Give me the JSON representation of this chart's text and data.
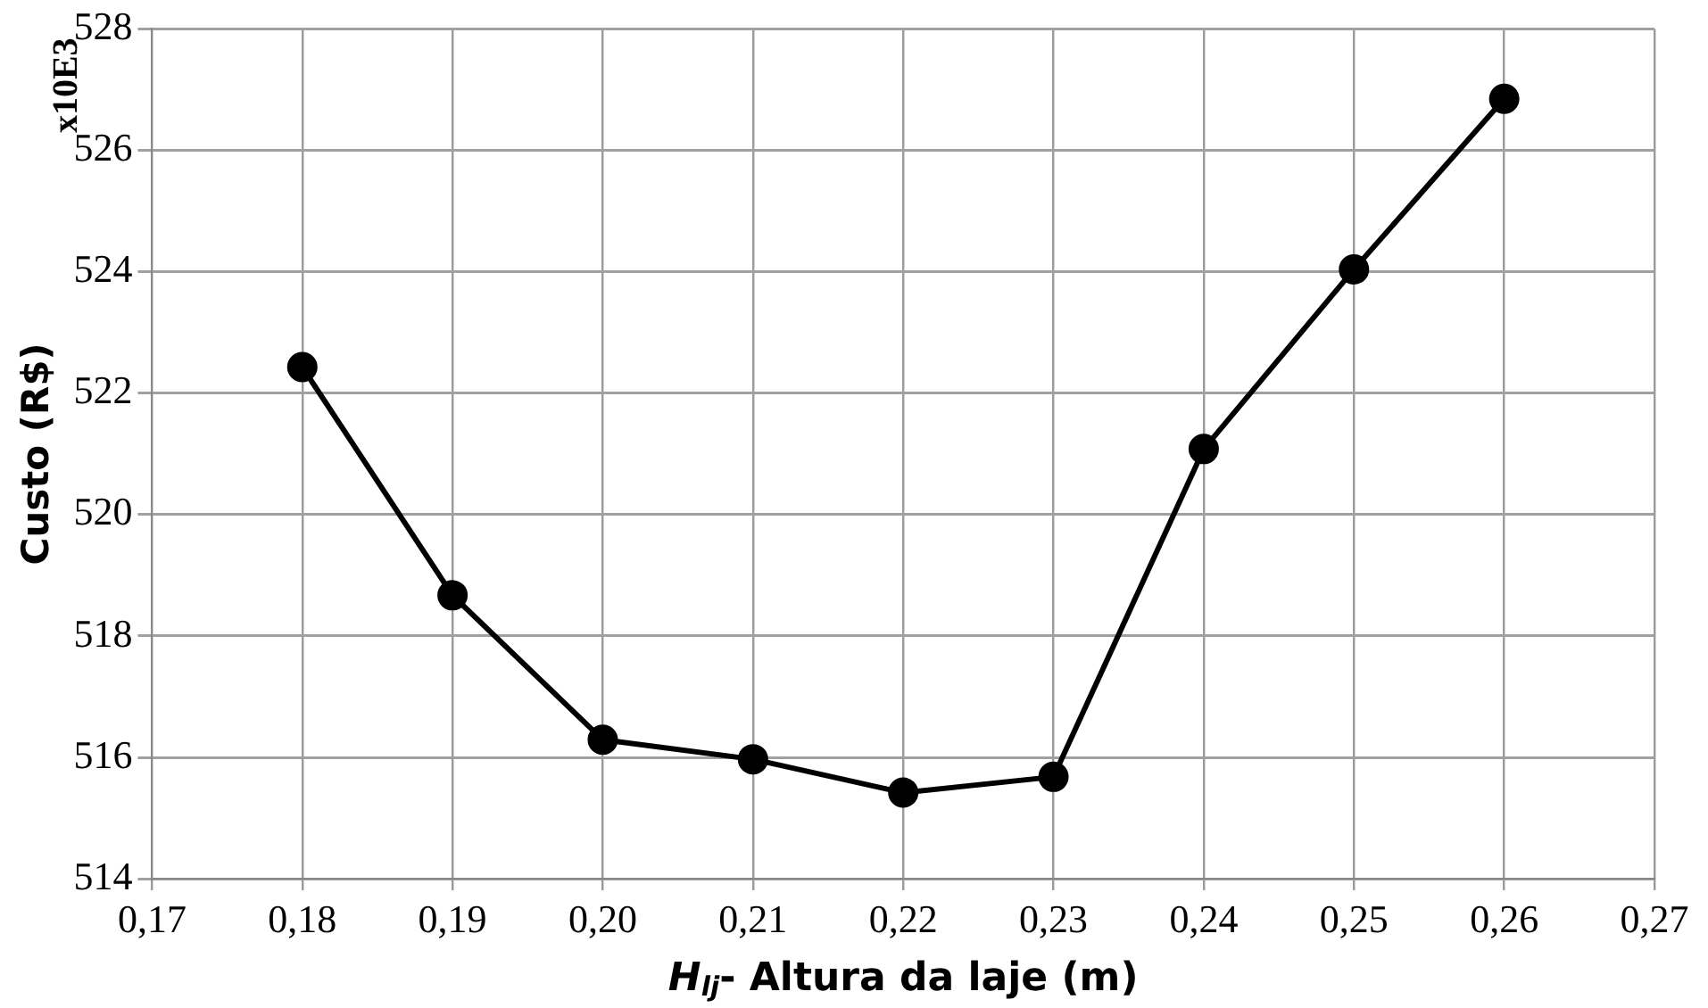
{
  "chart_data": {
    "type": "line",
    "xlabel": "H$_{lj}$- Altura da laje (m)",
    "ylabel": "Custo (R$)",
    "annotations": [
      "x10E3"
    ],
    "x": [
      0.18,
      0.19,
      0.2,
      0.21,
      0.22,
      0.23,
      0.24,
      0.25,
      0.26
    ],
    "series": [
      {
        "color": "#000000",
        "values": [
          522.43,
          518.67,
          516.29,
          515.97,
          515.42,
          515.68,
          521.08,
          524.04,
          526.85
        ]
      }
    ],
    "xlim": [
      0.17,
      0.27
    ],
    "xticks": [
      {
        "value": 0.17,
        "label": "0,17"
      },
      {
        "value": 0.18,
        "label": "0,18"
      },
      {
        "value": 0.19,
        "label": "0,19"
      },
      {
        "value": 0.2,
        "label": "0,20"
      },
      {
        "value": 0.21,
        "label": "0,21"
      },
      {
        "value": 0.22,
        "label": "0,22"
      },
      {
        "value": 0.23,
        "label": "0,23"
      },
      {
        "value": 0.24,
        "label": "0,24"
      },
      {
        "value": 0.25,
        "label": "0,25"
      },
      {
        "value": 0.26,
        "label": "0,26"
      },
      {
        "value": 0.27,
        "label": "0,27"
      }
    ],
    "ylim": [
      514,
      528
    ],
    "yticks": [
      514,
      516,
      518,
      520,
      522,
      524,
      526,
      528
    ],
    "grid": true,
    "legend": false,
    "marker": "circle",
    "line_style": "solid"
  }
}
